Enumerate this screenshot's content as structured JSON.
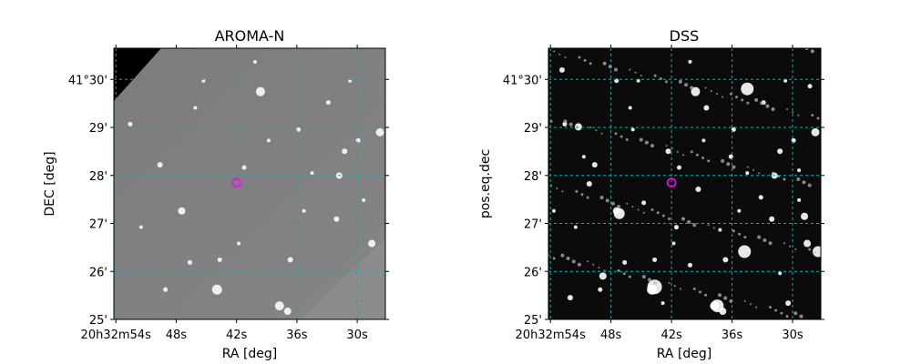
{
  "chart_data": [
    {
      "type": "image",
      "title": "AROMA-N",
      "xlabel": "RA [deg]",
      "ylabel": "DEC [deg]",
      "x_ticks": [
        {
          "value": 54,
          "label": "20h32m54s"
        },
        {
          "value": 48,
          "label": "48s"
        },
        {
          "value": 42,
          "label": "42s"
        },
        {
          "value": 36,
          "label": "36s"
        },
        {
          "value": 30,
          "label": "30s"
        }
      ],
      "y_ticks": [
        {
          "value": 30,
          "label": "41°30'"
        },
        {
          "value": 29,
          "label": "29'"
        },
        {
          "value": 28,
          "label": "28'"
        },
        {
          "value": 27,
          "label": "27'"
        },
        {
          "value": 26,
          "label": "26'"
        },
        {
          "value": 25,
          "label": "25'"
        }
      ],
      "xlim": [
        54.2,
        27.2
      ],
      "ylim": [
        25.0,
        30.65
      ],
      "grid": true,
      "grid_color": "#00b3b3",
      "image_style": "gray",
      "marker": {
        "ra_s": 42.0,
        "dec_min": 27.85,
        "color": "#ff00ff"
      }
    },
    {
      "type": "image",
      "title": "DSS",
      "xlabel": "RA [deg]",
      "ylabel": "pos.eq.dec",
      "x_ticks": [
        {
          "value": 54,
          "label": "20h32m54s"
        },
        {
          "value": 48,
          "label": "48s"
        },
        {
          "value": 42,
          "label": "42s"
        },
        {
          "value": 36,
          "label": "36s"
        },
        {
          "value": 30,
          "label": "30s"
        }
      ],
      "y_ticks": [
        {
          "value": 30,
          "label": "41°30'"
        },
        {
          "value": 29,
          "label": "29'"
        },
        {
          "value": 28,
          "label": "28'"
        },
        {
          "value": 27,
          "label": "27'"
        },
        {
          "value": 26,
          "label": "26'"
        },
        {
          "value": 25,
          "label": "25'"
        }
      ],
      "xlim": [
        54.2,
        27.2
      ],
      "ylim": [
        25.0,
        30.65
      ],
      "grid": true,
      "grid_color": "#00b3b3",
      "image_style": "dark",
      "marker": {
        "ra_s": 42.0,
        "dec_min": 27.85,
        "color": "#ff00ff"
      }
    }
  ]
}
